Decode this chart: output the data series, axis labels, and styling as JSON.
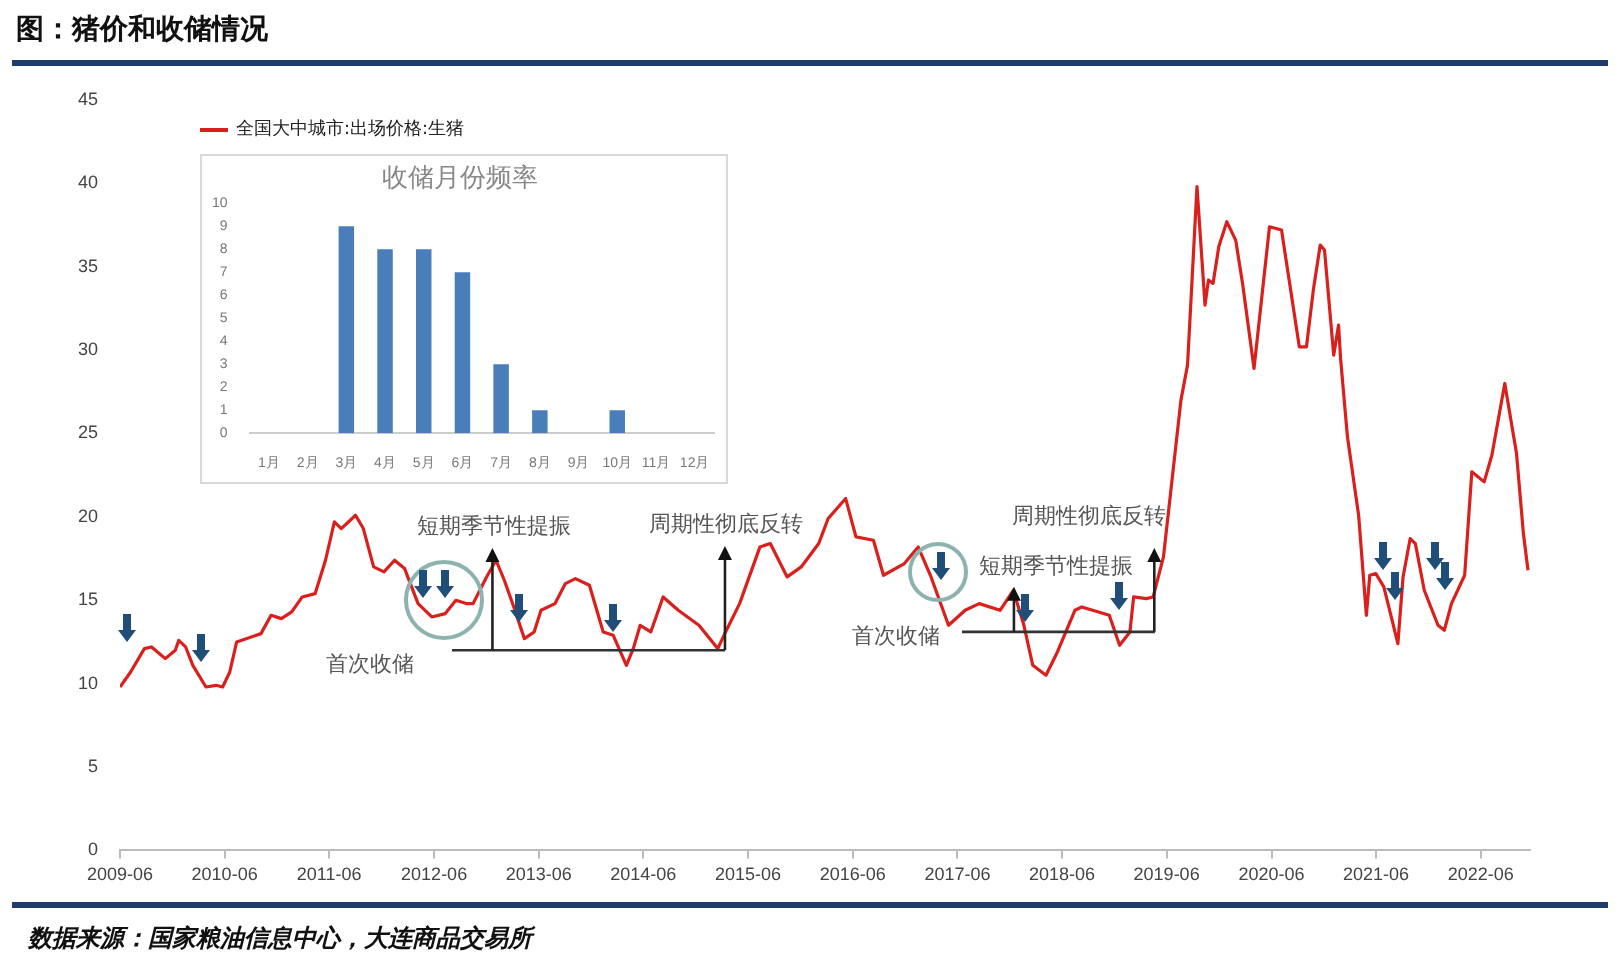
{
  "chart_data": [
    {
      "type": "line",
      "title": "图：猪价和收储情况",
      "annotations": [
        "短期季节性提振",
        "首次收储",
        "周期性彻底反转",
        "短期季节性提振",
        "首次收储",
        "周期性彻底反转",
        "数据来源：国家粮油信息中心，大连商品交易所"
      ],
      "x": [
        "2009-06-01",
        "2009-07-08",
        "2009-08-25",
        "2009-09-19",
        "2009-11-06",
        "2009-12-11",
        "2009-12-23",
        "2010-01-16",
        "2010-02-10",
        "2010-03-28",
        "2010-05-02",
        "2010-05-25",
        "2010-06-19",
        "2010-07-13",
        "2010-10-06",
        "2010-11-10",
        "2010-12-16",
        "2011-01-21",
        "2011-02-27",
        "2011-04-13",
        "2011-05-19",
        "2011-06-19",
        "2011-07-13",
        "2011-09-01",
        "2011-09-28",
        "2011-11-03",
        "2011-12-09",
        "2012-01-15",
        "2012-02-19",
        "2012-04-06",
        "2012-05-24",
        "2012-07-10",
        "2012-08-16",
        "2012-09-21",
        "2012-10-15",
        "2012-12-01",
        "2013-01-03",
        "2013-02-01",
        "2013-03-06",
        "2013-04-12",
        "2013-05-16",
        "2013-06-09",
        "2013-07-28",
        "2013-09-02",
        "2013-10-07",
        "2013-11-25",
        "2014-01-12",
        "2014-02-16",
        "2014-04-03",
        "2014-04-27",
        "2014-05-21",
        "2014-06-27",
        "2014-08-09",
        "2014-10-01",
        "2014-12-12",
        "2015-02-16",
        "2015-03-15",
        "2015-05-03",
        "2015-07-13",
        "2015-08-18",
        "2015-10-16",
        "2015-12-04",
        "2016-02-03",
        "2016-03-07",
        "2016-05-07",
        "2016-06-12",
        "2016-08-12",
        "2016-09-16",
        "2016-11-28",
        "2017-01-15",
        "2017-03-01",
        "2017-05-01",
        "2017-06-28",
        "2017-08-16",
        "2017-10-28",
        "2017-12-13",
        "2018-01-19",
        "2018-02-19",
        "2018-04-06",
        "2018-05-16",
        "2018-07-16",
        "2018-08-09",
        "2018-11-13",
        "2018-12-19",
        "2019-01-24",
        "2019-02-06",
        "2019-03-22",
        "2019-04-15",
        "2019-05-21",
        "2019-07-21",
        "2019-08-13",
        "2019-09-15",
        "2019-10-13",
        "2019-10-25",
        "2019-11-10",
        "2019-11-30",
        "2019-12-28",
        "2020-01-28",
        "2020-02-21",
        "2020-04-01",
        "2020-05-25",
        "2020-07-06",
        "2020-09-06",
        "2020-10-01",
        "2020-10-25",
        "2020-11-18",
        "2020-12-03",
        "2021-01-04",
        "2021-01-21",
        "2021-01-28",
        "2021-02-21",
        "2021-04-01",
        "2021-04-28",
        "2021-05-10",
        "2021-05-31",
        "2021-06-28",
        "2021-08-16",
        "2021-09-03",
        "2021-09-28",
        "2021-10-16",
        "2021-11-16",
        "2022-01-03",
        "2022-01-25",
        "2022-02-19",
        "2022-04-06",
        "2022-05-01",
        "2022-06-13",
        "2022-07-10",
        "2022-08-24",
        "2022-10-04",
        "2022-10-28",
        "2022-11-13"
      ],
      "series": [
        {
          "name": "全国大中城市:出场价格:生猪",
          "color": "#d9201c",
          "values": [
            9.8,
            10.7,
            12.1,
            12.2,
            11.5,
            12.0,
            12.6,
            12.2,
            11.1,
            9.8,
            9.9,
            9.8,
            10.7,
            12.5,
            13.0,
            14.1,
            13.9,
            14.3,
            15.2,
            15.4,
            17.4,
            19.7,
            19.3,
            20.1,
            19.3,
            17.0,
            16.7,
            17.4,
            16.9,
            14.8,
            14.0,
            14.2,
            15.0,
            14.8,
            14.8,
            16.4,
            17.4,
            16.2,
            14.6,
            12.7,
            13.1,
            14.4,
            14.8,
            16.0,
            16.3,
            15.9,
            13.1,
            12.9,
            11.1,
            12.1,
            13.5,
            13.1,
            15.2,
            14.4,
            13.5,
            12.1,
            13.1,
            14.8,
            18.2,
            18.4,
            16.4,
            17.0,
            18.4,
            19.9,
            21.1,
            18.8,
            18.6,
            16.5,
            17.2,
            18.2,
            16.4,
            13.5,
            14.4,
            14.8,
            14.4,
            15.6,
            13.5,
            11.1,
            10.5,
            11.9,
            14.4,
            14.6,
            14.1,
            12.3,
            13.1,
            15.2,
            15.1,
            15.2,
            17.6,
            27.0,
            29.1,
            39.8,
            32.7,
            34.2,
            34.0,
            36.2,
            37.7,
            36.6,
            34.0,
            28.9,
            37.4,
            37.2,
            30.2,
            30.2,
            33.6,
            36.3,
            36.0,
            29.7,
            31.5,
            29.5,
            24.8,
            20.1,
            14.1,
            16.5,
            16.6,
            15.8,
            12.4,
            16.4,
            18.7,
            18.4,
            15.6,
            13.5,
            13.2,
            14.8,
            16.5,
            22.7,
            22.1,
            23.7,
            28.0,
            23.8,
            19.0,
            16.8
          ]
        }
      ],
      "xlim": [
        "2009-06-01",
        "2022-11-20"
      ],
      "xticks": [
        "2009-06",
        "2010-06",
        "2011-06",
        "2012-06",
        "2013-06",
        "2014-06",
        "2015-06",
        "2016-06",
        "2017-06",
        "2018-06",
        "2019-06",
        "2020-06",
        "2021-06",
        "2022-06"
      ],
      "ylim": [
        0,
        45
      ],
      "yticks": [
        0,
        5,
        10,
        15,
        20,
        25,
        30,
        35,
        40,
        45
      ],
      "legend": "top left",
      "marker": "none",
      "line_style": "solid"
    },
    {
      "type": "bar",
      "title": "收储月份频率",
      "categories": [
        "1月",
        "2月",
        "3月",
        "4月",
        "5月",
        "6月",
        "7月",
        "8月",
        "9月",
        "10月",
        "11月",
        "12月"
      ],
      "values": [
        0,
        0,
        9,
        8,
        8,
        7,
        3,
        1,
        0,
        1,
        0,
        0
      ],
      "color": "#4a7ebb",
      "ylim": [
        0,
        10
      ],
      "yticks": [
        0,
        1,
        2,
        3,
        4,
        5,
        6,
        7,
        8,
        9,
        10
      ]
    }
  ]
}
